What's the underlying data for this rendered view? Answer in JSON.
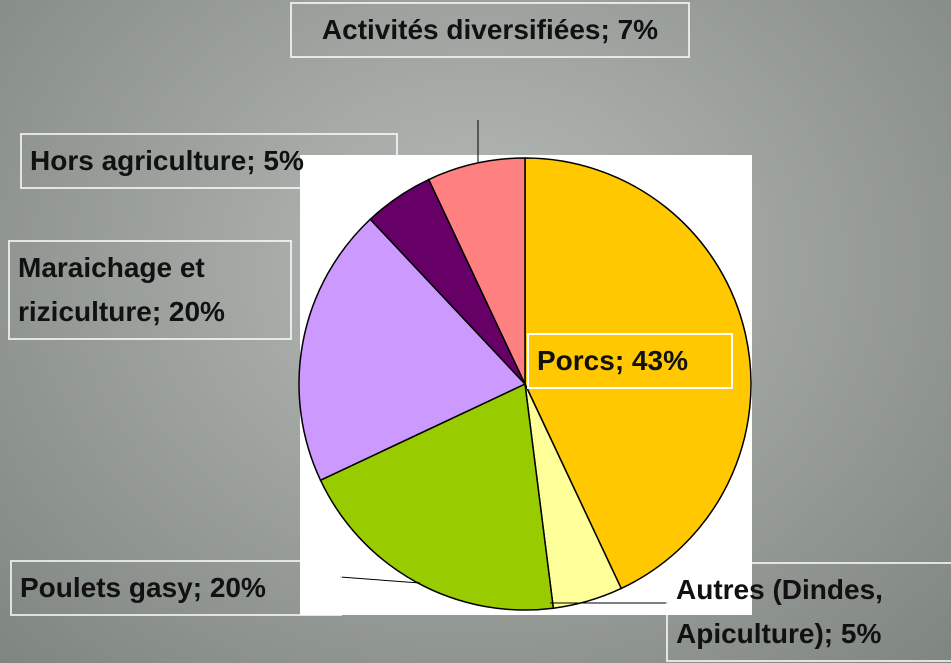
{
  "chart_data": {
    "type": "pie",
    "categories": [
      "Porcs",
      "Autres (Dindes, Apiculture)",
      "Poulets gasy",
      "Maraichage et riziculture",
      "Hors agriculture",
      "Activités diversifiées"
    ],
    "values": [
      43,
      5,
      20,
      20,
      5,
      7
    ],
    "value_labels": [
      "; 43%",
      "; 5%",
      "; 20%",
      "; 20%",
      "; 5%",
      "; 7%"
    ],
    "colors": [
      "#ffc800",
      "#ffff99",
      "#99cc00",
      "#cc99ff",
      "#660066",
      "#ff8080"
    ]
  }
}
